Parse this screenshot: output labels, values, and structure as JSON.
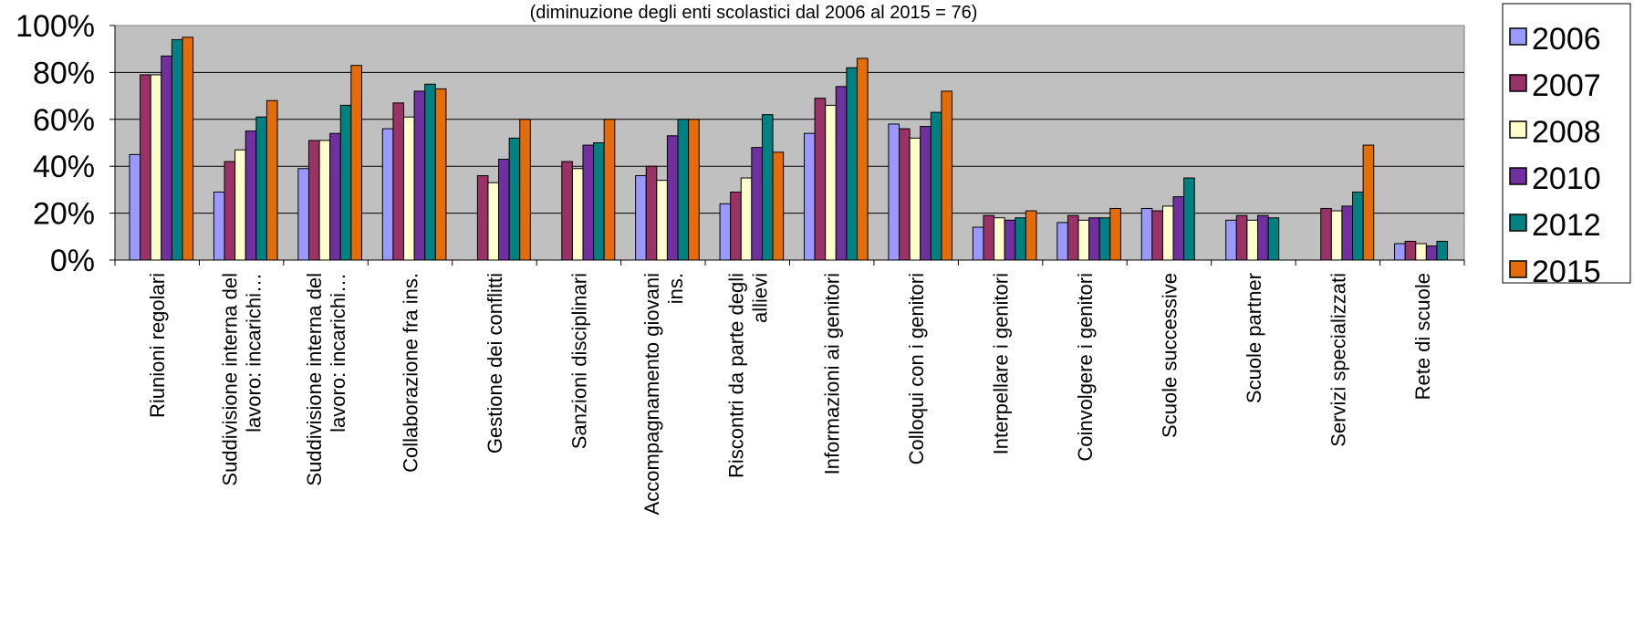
{
  "chart_data": {
    "type": "bar",
    "subtitle": "(diminuzione degli enti scolastici dal 2006 al 2015 = 76)",
    "xlabel": "",
    "ylabel": "",
    "ylim": [
      0,
      100
    ],
    "yticks": [
      "0%",
      "20%",
      "40%",
      "60%",
      "80%",
      "100%"
    ],
    "grid": true,
    "legend_position": "right",
    "categories": [
      [
        "Riunioni regolari"
      ],
      [
        "Suddivisione interna del",
        "lavoro: incarichi…"
      ],
      [
        "Suddivisione interna del",
        "lavoro: incarichi…"
      ],
      [
        "Collaborazione fra ins."
      ],
      [
        "Gestione dei conflitti"
      ],
      [
        "Sanzioni disciplinari"
      ],
      [
        "Accompagnamento giovani",
        "ins."
      ],
      [
        "Riscontri da parte degli",
        "allievi"
      ],
      [
        "Informazioni ai genitori"
      ],
      [
        "Colloqui con i genitori"
      ],
      [
        "Interpellare i genitori"
      ],
      [
        "Coinvolgere i genitori"
      ],
      [
        "Scuole successive"
      ],
      [
        "Scuole partner"
      ],
      [
        "Servizi specializzati"
      ],
      [
        "Rete di scuole"
      ]
    ],
    "series": [
      {
        "name": "2006",
        "color": "#9999FF",
        "values": [
          45,
          29,
          39,
          56,
          null,
          null,
          36,
          24,
          54,
          58,
          14,
          16,
          22,
          17,
          null,
          7
        ]
      },
      {
        "name": "2007",
        "color": "#993366",
        "values": [
          79,
          42,
          51,
          67,
          36,
          42,
          40,
          29,
          69,
          56,
          19,
          19,
          21,
          19,
          22,
          8
        ]
      },
      {
        "name": "2008",
        "color": "#FFFFCC",
        "values": [
          79,
          47,
          51,
          61,
          33,
          39,
          34,
          35,
          66,
          52,
          18,
          17,
          23,
          17,
          21,
          7
        ]
      },
      {
        "name": "2010",
        "color": "#7030A0",
        "values": [
          87,
          55,
          54,
          72,
          43,
          49,
          53,
          48,
          74,
          57,
          17,
          18,
          27,
          19,
          23,
          6
        ]
      },
      {
        "name": "2012",
        "color": "#008080",
        "values": [
          94,
          61,
          66,
          75,
          52,
          50,
          60,
          62,
          82,
          63,
          18,
          18,
          35,
          18,
          29,
          8
        ]
      },
      {
        "name": "2015",
        "color": "#E46C0A",
        "values": [
          95,
          68,
          83,
          73,
          60,
          60,
          60,
          46,
          86,
          72,
          21,
          22,
          null,
          null,
          49,
          null
        ]
      }
    ]
  }
}
